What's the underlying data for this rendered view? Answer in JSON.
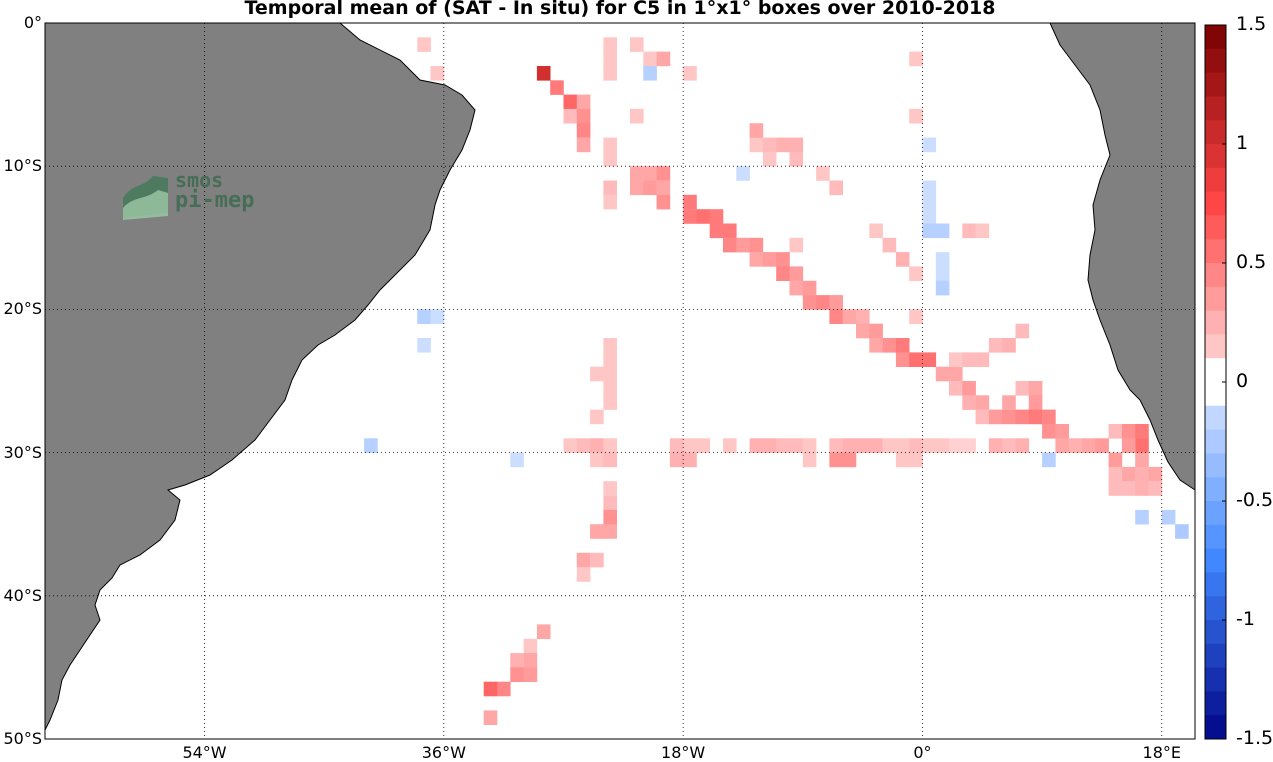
{
  "title": "Temporal mean of (SAT - In situ) for C5 in 1°x1° boxes over 2010-2018",
  "logo": {
    "line1": "smos",
    "line2": "pi-mep"
  },
  "map": {
    "projection": "equirectangular",
    "lon_range": [
      -66,
      20.5
    ],
    "lat_range": [
      -50,
      0
    ],
    "land_color": "#808080",
    "ocean_color": "#ffffff",
    "grid": "dotted",
    "lat_ticks": [
      {
        "value": 0,
        "label": "0°"
      },
      {
        "value": -10,
        "label": "10°S"
      },
      {
        "value": -20,
        "label": "20°S"
      },
      {
        "value": -30,
        "label": "30°S"
      },
      {
        "value": -40,
        "label": "40°S"
      },
      {
        "value": -50,
        "label": "50°S"
      }
    ],
    "lon_ticks": [
      {
        "value": -54,
        "label": "54°W"
      },
      {
        "value": -36,
        "label": "36°W"
      },
      {
        "value": -18,
        "label": "18°W"
      },
      {
        "value": 0,
        "label": "0°"
      },
      {
        "value": 18,
        "label": "18°E"
      }
    ]
  },
  "colorbar": {
    "min": -1.5,
    "max": 1.5,
    "step": 0.1,
    "ticks": [
      {
        "value": 1.5,
        "label": "1.5"
      },
      {
        "value": 1,
        "label": "1"
      },
      {
        "value": 0.5,
        "label": "0.5"
      },
      {
        "value": 0,
        "label": "0"
      },
      {
        "value": -0.5,
        "label": "-0.5"
      },
      {
        "value": -1,
        "label": "-1"
      },
      {
        "value": -1.5,
        "label": "-1.5"
      }
    ]
  },
  "chart_data": {
    "type": "heatmap",
    "title": "Temporal mean of (SAT - In situ) for C5 in 1°x1° boxes over 2010-2018",
    "cell_size_deg": 1,
    "cells": [
      {
        "lon": -38,
        "lat": -1,
        "v": 0.15
      },
      {
        "lon": -37,
        "lat": -3,
        "v": 0.15
      },
      {
        "lon": -29,
        "lat": -3,
        "v": 1.0
      },
      {
        "lon": -28,
        "lat": -4,
        "v": 0.5
      },
      {
        "lon": -27,
        "lat": -5,
        "v": 0.6
      },
      {
        "lon": -26,
        "lat": -5,
        "v": 0.3
      },
      {
        "lon": -27,
        "lat": -6,
        "v": 0.2
      },
      {
        "lon": -26,
        "lat": -6,
        "v": 0.4
      },
      {
        "lon": -26,
        "lat": -7,
        "v": 0.45
      },
      {
        "lon": -26,
        "lat": -8,
        "v": 0.3
      },
      {
        "lon": -24,
        "lat": -1,
        "v": 0.15
      },
      {
        "lon": -24,
        "lat": -2,
        "v": 0.15
      },
      {
        "lon": -24,
        "lat": -3,
        "v": 0.15
      },
      {
        "lon": -22,
        "lat": -1,
        "v": 0.15
      },
      {
        "lon": -21,
        "lat": -2,
        "v": 0.15
      },
      {
        "lon": -21,
        "lat": -3,
        "v": -0.2
      },
      {
        "lon": -20,
        "lat": -2,
        "v": 0.3
      },
      {
        "lon": -18,
        "lat": -3,
        "v": 0.15
      },
      {
        "lon": -22,
        "lat": -6,
        "v": 0.15
      },
      {
        "lon": -24,
        "lat": -8,
        "v": 0.15
      },
      {
        "lon": -24,
        "lat": -9,
        "v": 0.15
      },
      {
        "lon": -22,
        "lat": -10,
        "v": 0.3
      },
      {
        "lon": -21,
        "lat": -10,
        "v": 0.3
      },
      {
        "lon": -20,
        "lat": -10,
        "v": 0.4
      },
      {
        "lon": -24,
        "lat": -11,
        "v": 0.2
      },
      {
        "lon": -22,
        "lat": -11,
        "v": 0.3
      },
      {
        "lon": -21,
        "lat": -11,
        "v": 0.35
      },
      {
        "lon": -20,
        "lat": -11,
        "v": 0.3
      },
      {
        "lon": -24,
        "lat": -12,
        "v": 0.15
      },
      {
        "lon": -20,
        "lat": -12,
        "v": 0.4
      },
      {
        "lon": -18,
        "lat": -12,
        "v": 0.5
      },
      {
        "lon": -18,
        "lat": -13,
        "v": 0.5
      },
      {
        "lon": -17,
        "lat": -13,
        "v": 0.55
      },
      {
        "lon": -16,
        "lat": -13,
        "v": 0.5
      },
      {
        "lon": -16,
        "lat": -14,
        "v": 0.5
      },
      {
        "lon": -15,
        "lat": -14,
        "v": 0.5
      },
      {
        "lon": -15,
        "lat": -15,
        "v": 0.45
      },
      {
        "lon": -14,
        "lat": -15,
        "v": 0.35
      },
      {
        "lon": -13,
        "lat": -15,
        "v": 0.4
      },
      {
        "lon": -13,
        "lat": -16,
        "v": 0.3
      },
      {
        "lon": -12,
        "lat": -16,
        "v": 0.35
      },
      {
        "lon": -11,
        "lat": -16,
        "v": 0.4
      },
      {
        "lon": -11,
        "lat": -17,
        "v": 0.45
      },
      {
        "lon": -10,
        "lat": -17,
        "v": 0.35
      },
      {
        "lon": -10,
        "lat": -18,
        "v": 0.3
      },
      {
        "lon": -9,
        "lat": -18,
        "v": 0.35
      },
      {
        "lon": -9,
        "lat": -19,
        "v": 0.4
      },
      {
        "lon": -8,
        "lat": -19,
        "v": 0.45
      },
      {
        "lon": -7,
        "lat": -19,
        "v": 0.35
      },
      {
        "lon": -7,
        "lat": -20,
        "v": 0.45
      },
      {
        "lon": -6,
        "lat": -20,
        "v": 0.3
      },
      {
        "lon": -5,
        "lat": -20,
        "v": 0.25
      },
      {
        "lon": -5,
        "lat": -21,
        "v": 0.3
      },
      {
        "lon": -4,
        "lat": -21,
        "v": 0.35
      },
      {
        "lon": -4,
        "lat": -22,
        "v": 0.3
      },
      {
        "lon": -3,
        "lat": -22,
        "v": 0.4
      },
      {
        "lon": -2,
        "lat": -22,
        "v": 0.5
      },
      {
        "lon": -2,
        "lat": -23,
        "v": 0.4
      },
      {
        "lon": -1,
        "lat": -23,
        "v": 0.55
      },
      {
        "lon": 0,
        "lat": -23,
        "v": 0.55
      },
      {
        "lon": 1,
        "lat": -24,
        "v": 0.3
      },
      {
        "lon": 2,
        "lat": -24,
        "v": 0.3
      },
      {
        "lon": 2,
        "lat": -25,
        "v": 0.2
      },
      {
        "lon": 3,
        "lat": -25,
        "v": 0.35
      },
      {
        "lon": 3,
        "lat": -26,
        "v": 0.25
      },
      {
        "lon": 4,
        "lat": -26,
        "v": 0.3
      },
      {
        "lon": 4,
        "lat": -27,
        "v": 0.2
      },
      {
        "lon": 5,
        "lat": -27,
        "v": 0.35
      },
      {
        "lon": 6,
        "lat": -27,
        "v": 0.4
      },
      {
        "lon": 6,
        "lat": -26,
        "v": 0.3
      },
      {
        "lon": 7,
        "lat": -25,
        "v": 0.2
      },
      {
        "lon": 8,
        "lat": -25,
        "v": 0.3
      },
      {
        "lon": 8,
        "lat": -26,
        "v": 0.35
      },
      {
        "lon": 7,
        "lat": -27,
        "v": 0.45
      },
      {
        "lon": 8,
        "lat": -27,
        "v": 0.5
      },
      {
        "lon": 9,
        "lat": -27,
        "v": 0.45
      },
      {
        "lon": 9,
        "lat": -28,
        "v": 0.4
      },
      {
        "lon": 10,
        "lat": -28,
        "v": 0.35
      },
      {
        "lon": 10,
        "lat": -29,
        "v": 0.3
      },
      {
        "lon": 11,
        "lat": -29,
        "v": 0.25
      },
      {
        "lon": 12,
        "lat": -29,
        "v": 0.3
      },
      {
        "lon": 13,
        "lat": -29,
        "v": 0.35
      },
      {
        "lon": 14,
        "lat": -28,
        "v": 0.2
      },
      {
        "lon": 15,
        "lat": -28,
        "v": 0.4
      },
      {
        "lon": 16,
        "lat": -28,
        "v": 0.5
      },
      {
        "lon": 16,
        "lat": -29,
        "v": 0.55
      },
      {
        "lon": 15,
        "lat": -29,
        "v": 0.35
      },
      {
        "lon": 14,
        "lat": -30,
        "v": 0.35
      },
      {
        "lon": 16,
        "lat": -30,
        "v": 0.3
      },
      {
        "lon": 15,
        "lat": -31,
        "v": 0.3
      },
      {
        "lon": 16,
        "lat": -31,
        "v": 0.25
      },
      {
        "lon": 17,
        "lat": -31,
        "v": 0.3
      },
      {
        "lon": 14,
        "lat": -31,
        "v": 0.2
      },
      {
        "lon": 15,
        "lat": -32,
        "v": 0.2
      },
      {
        "lon": 16,
        "lat": -32,
        "v": 0.25
      },
      {
        "lon": 14,
        "lat": -32,
        "v": 0.2
      },
      {
        "lon": 17,
        "lat": -32,
        "v": 0.2
      },
      {
        "lon": 3,
        "lat": -14,
        "v": 0.2
      },
      {
        "lon": 4,
        "lat": -14,
        "v": 0.15
      },
      {
        "lon": 2,
        "lat": -23,
        "v": 0.15
      },
      {
        "lon": 3,
        "lat": -23,
        "v": 0.2
      },
      {
        "lon": 4,
        "lat": -23,
        "v": 0.2
      },
      {
        "lon": 5,
        "lat": -22,
        "v": 0.2
      },
      {
        "lon": 6,
        "lat": -22,
        "v": 0.25
      },
      {
        "lon": 7,
        "lat": -21,
        "v": 0.2
      },
      {
        "lon": -1,
        "lat": -2,
        "v": 0.15
      },
      {
        "lon": -1,
        "lat": -20,
        "v": 0.15
      },
      {
        "lon": -13,
        "lat": -8,
        "v": 0.15
      },
      {
        "lon": -12,
        "lat": -8,
        "v": 0.2
      },
      {
        "lon": -11,
        "lat": -8,
        "v": 0.25
      },
      {
        "lon": -10,
        "lat": -8,
        "v": 0.25
      },
      {
        "lon": -13,
        "lat": -7,
        "v": 0.3
      },
      {
        "lon": -10,
        "lat": -9,
        "v": 0.2
      },
      {
        "lon": -12,
        "lat": -9,
        "v": 0.15
      },
      {
        "lon": -8,
        "lat": -10,
        "v": 0.15
      },
      {
        "lon": -7,
        "lat": -11,
        "v": 0.2
      },
      {
        "lon": -10,
        "lat": -15,
        "v": 0.15
      },
      {
        "lon": -14,
        "lat": -10,
        "v": -0.1
      },
      {
        "lon": -4,
        "lat": -14,
        "v": 0.15
      },
      {
        "lon": -3,
        "lat": -15,
        "v": 0.2
      },
      {
        "lon": -2,
        "lat": -16,
        "v": 0.25
      },
      {
        "lon": -1,
        "lat": -17,
        "v": 0.15
      },
      {
        "lon": 0,
        "lat": -8,
        "v": -0.1
      },
      {
        "lon": 0,
        "lat": -11,
        "v": -0.1
      },
      {
        "lon": 0,
        "lat": -12,
        "v": -0.1
      },
      {
        "lon": 0,
        "lat": -13,
        "v": -0.1
      },
      {
        "lon": 0,
        "lat": -14,
        "v": -0.2
      },
      {
        "lon": 1,
        "lat": -14,
        "v": -0.2
      },
      {
        "lon": 1,
        "lat": -16,
        "v": -0.1
      },
      {
        "lon": 1,
        "lat": -17,
        "v": -0.1
      },
      {
        "lon": 1,
        "lat": -18,
        "v": -0.2
      },
      {
        "lon": -1,
        "lat": -6,
        "v": 0.15
      },
      {
        "lon": -38,
        "lat": -20,
        "v": -0.2
      },
      {
        "lon": -37,
        "lat": -20,
        "v": -0.1
      },
      {
        "lon": -38,
        "lat": -22,
        "v": -0.1
      },
      {
        "lon": -24,
        "lat": -22,
        "v": 0.15
      },
      {
        "lon": -24,
        "lat": -23,
        "v": 0.15
      },
      {
        "lon": -25,
        "lat": -24,
        "v": 0.15
      },
      {
        "lon": -24,
        "lat": -24,
        "v": 0.15
      },
      {
        "lon": -24,
        "lat": -25,
        "v": 0.15
      },
      {
        "lon": -24,
        "lat": -26,
        "v": 0.15
      },
      {
        "lon": -25,
        "lat": -27,
        "v": 0.15
      },
      {
        "lon": -42,
        "lat": -29,
        "v": -0.2
      },
      {
        "lon": -31,
        "lat": -30,
        "v": -0.1
      },
      {
        "lon": -27,
        "lat": -29,
        "v": 0.15
      },
      {
        "lon": -26,
        "lat": -29,
        "v": 0.2
      },
      {
        "lon": -25,
        "lat": -29,
        "v": 0.25
      },
      {
        "lon": -24,
        "lat": -29,
        "v": 0.15
      },
      {
        "lon": -25,
        "lat": -30,
        "v": 0.15
      },
      {
        "lon": -24,
        "lat": -30,
        "v": 0.2
      },
      {
        "lon": -19,
        "lat": -29,
        "v": 0.2
      },
      {
        "lon": -18,
        "lat": -29,
        "v": 0.15
      },
      {
        "lon": -19,
        "lat": -30,
        "v": 0.25
      },
      {
        "lon": -18,
        "lat": -30,
        "v": 0.25
      },
      {
        "lon": -17,
        "lat": -29,
        "v": 0.15
      },
      {
        "lon": -15,
        "lat": -29,
        "v": 0.15
      },
      {
        "lon": -13,
        "lat": -29,
        "v": 0.25
      },
      {
        "lon": -12,
        "lat": -29,
        "v": 0.25
      },
      {
        "lon": -11,
        "lat": -29,
        "v": 0.2
      },
      {
        "lon": -10,
        "lat": -29,
        "v": 0.2
      },
      {
        "lon": -9,
        "lat": -29,
        "v": 0.15
      },
      {
        "lon": -9,
        "lat": -30,
        "v": 0.15
      },
      {
        "lon": -7,
        "lat": -29,
        "v": 0.2
      },
      {
        "lon": -6,
        "lat": -29,
        "v": 0.25
      },
      {
        "lon": -5,
        "lat": -29,
        "v": 0.25
      },
      {
        "lon": -4,
        "lat": -29,
        "v": 0.25
      },
      {
        "lon": -7,
        "lat": -30,
        "v": 0.4
      },
      {
        "lon": -6,
        "lat": -30,
        "v": 0.4
      },
      {
        "lon": -3,
        "lat": -29,
        "v": 0.15
      },
      {
        "lon": -2,
        "lat": -29,
        "v": 0.15
      },
      {
        "lon": -1,
        "lat": -29,
        "v": 0.2
      },
      {
        "lon": -2,
        "lat": -30,
        "v": 0.15
      },
      {
        "lon": -1,
        "lat": -30,
        "v": 0.15
      },
      {
        "lon": 0,
        "lat": -29,
        "v": 0.15
      },
      {
        "lon": 1,
        "lat": -29,
        "v": 0.15
      },
      {
        "lon": 2,
        "lat": -29,
        "v": 0.1
      },
      {
        "lon": 3,
        "lat": -29,
        "v": 0.1
      },
      {
        "lon": 5,
        "lat": -29,
        "v": 0.25
      },
      {
        "lon": 6,
        "lat": -29,
        "v": 0.2
      },
      {
        "lon": 7,
        "lat": -29,
        "v": 0.25
      },
      {
        "lon": 9,
        "lat": -30,
        "v": -0.2
      },
      {
        "lon": -24,
        "lat": -32,
        "v": 0.15
      },
      {
        "lon": -24,
        "lat": -33,
        "v": 0.2
      },
      {
        "lon": -24,
        "lat": -34,
        "v": 0.4
      },
      {
        "lon": -25,
        "lat": -35,
        "v": 0.3
      },
      {
        "lon": -24,
        "lat": -35,
        "v": 0.3
      },
      {
        "lon": -26,
        "lat": -37,
        "v": 0.3
      },
      {
        "lon": -25,
        "lat": -37,
        "v": 0.2
      },
      {
        "lon": -26,
        "lat": -38,
        "v": 0.15
      },
      {
        "lon": 16,
        "lat": -34,
        "v": -0.2
      },
      {
        "lon": 18,
        "lat": -34,
        "v": -0.2
      },
      {
        "lon": 19,
        "lat": -35,
        "v": -0.25
      },
      {
        "lon": -29,
        "lat": -42,
        "v": 0.3
      },
      {
        "lon": -30,
        "lat": -43,
        "v": 0.15
      },
      {
        "lon": -30,
        "lat": -44,
        "v": 0.3
      },
      {
        "lon": -31,
        "lat": -44,
        "v": 0.25
      },
      {
        "lon": -30,
        "lat": -45,
        "v": 0.35
      },
      {
        "lon": -31,
        "lat": -45,
        "v": 0.4
      },
      {
        "lon": -32,
        "lat": -46,
        "v": 0.45
      },
      {
        "lon": -33,
        "lat": -46,
        "v": 0.6
      },
      {
        "lon": -33,
        "lat": -48,
        "v": 0.3
      }
    ]
  }
}
